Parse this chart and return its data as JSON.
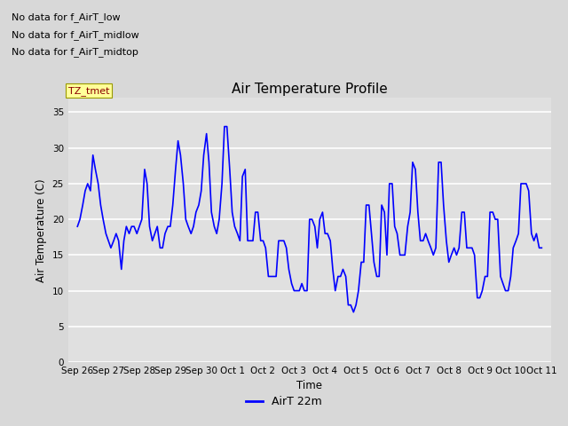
{
  "title": "Air Temperature Profile",
  "ylabel": "Air Temperature (C)",
  "xlabel": "Time",
  "legend_label": "AirT 22m",
  "ylim": [
    0,
    37
  ],
  "yticks": [
    0,
    5,
    10,
    15,
    20,
    25,
    30,
    35
  ],
  "figure_bg_color": "#d8d8d8",
  "plot_bg_color": "#e0e0e0",
  "line_color": "blue",
  "annotations": [
    "No data for f_AirT_low",
    "No data for f_AirT_midlow",
    "No data for f_AirT_midtop"
  ],
  "tz_label": "TZ_tmet",
  "x_tick_labels": [
    "Sep 26",
    "Sep 27",
    "Sep 28",
    "Sep 29",
    "Sep 30",
    "Oct 1",
    "Oct 2",
    "Oct 3",
    "Oct 4",
    "Oct 5",
    "Oct 6",
    "Oct 7",
    "Oct 8",
    "Oct 9",
    "Oct 10",
    "Oct 11"
  ],
  "data_x": [
    0,
    0.08,
    0.17,
    0.25,
    0.33,
    0.42,
    0.5,
    0.58,
    0.67,
    0.75,
    0.83,
    0.92,
    1.0,
    1.08,
    1.17,
    1.25,
    1.33,
    1.42,
    1.5,
    1.58,
    1.67,
    1.75,
    1.83,
    1.92,
    2.0,
    2.08,
    2.17,
    2.25,
    2.33,
    2.42,
    2.5,
    2.58,
    2.67,
    2.75,
    2.83,
    2.92,
    3.0,
    3.08,
    3.17,
    3.25,
    3.33,
    3.42,
    3.5,
    3.58,
    3.67,
    3.75,
    3.83,
    3.92,
    4.0,
    4.08,
    4.17,
    4.25,
    4.33,
    4.42,
    4.5,
    4.58,
    4.67,
    4.75,
    4.83,
    4.92,
    5.0,
    5.08,
    5.17,
    5.25,
    5.33,
    5.42,
    5.5,
    5.58,
    5.67,
    5.75,
    5.83,
    5.92,
    6.0,
    6.08,
    6.17,
    6.25,
    6.33,
    6.42,
    6.5,
    6.58,
    6.67,
    6.75,
    6.83,
    6.92,
    7.0,
    7.08,
    7.17,
    7.25,
    7.33,
    7.42,
    7.5,
    7.58,
    7.67,
    7.75,
    7.83,
    7.92,
    8.0,
    8.08,
    8.17,
    8.25,
    8.33,
    8.42,
    8.5,
    8.58,
    8.67,
    8.75,
    8.83,
    8.92,
    9.0,
    9.08,
    9.17,
    9.25,
    9.33,
    9.42,
    9.5,
    9.58,
    9.67,
    9.75,
    9.83,
    9.92,
    10.0,
    10.08,
    10.17,
    10.25,
    10.33,
    10.42,
    10.5,
    10.58,
    10.67,
    10.75,
    10.83,
    10.92,
    11.0,
    11.08,
    11.17,
    11.25,
    11.33,
    11.42,
    11.5,
    11.58,
    11.67,
    11.75,
    11.83,
    11.92,
    12.0,
    12.08,
    12.17,
    12.25,
    12.33,
    12.42,
    12.5,
    12.58,
    12.67,
    12.75,
    12.83,
    12.92,
    13.0,
    13.08,
    13.17,
    13.25,
    13.33,
    13.42,
    13.5,
    13.58,
    13.67,
    13.75,
    13.83,
    13.92,
    14.0,
    14.08,
    14.17,
    14.25,
    14.33,
    14.42,
    14.5,
    14.58,
    14.67,
    14.75,
    14.83,
    14.92,
    15.0
  ],
  "data_y": [
    19,
    20,
    22,
    24,
    25,
    24,
    29,
    27,
    25,
    22,
    20,
    18,
    17,
    16,
    17,
    18,
    17,
    13,
    17,
    19,
    18,
    19,
    19,
    18,
    19,
    20,
    27,
    25,
    19,
    17,
    18,
    19,
    16,
    16,
    18,
    19,
    19,
    22,
    27,
    31,
    29,
    25,
    20,
    19,
    18,
    19,
    21,
    22,
    24,
    29,
    32,
    28,
    21,
    19,
    18,
    20,
    25,
    33,
    33,
    27,
    21,
    19,
    18,
    17,
    26,
    27,
    17,
    17,
    17,
    21,
    21,
    17,
    17,
    16,
    12,
    12,
    12,
    12,
    17,
    17,
    17,
    16,
    13,
    11,
    10,
    10,
    10,
    11,
    10,
    10,
    20,
    20,
    19,
    16,
    20,
    21,
    18,
    18,
    17,
    13,
    10,
    12,
    12,
    13,
    12,
    8,
    8,
    7,
    8,
    10,
    14,
    14,
    22,
    22,
    18,
    14,
    12,
    12,
    22,
    21,
    15,
    25,
    25,
    19,
    18,
    15,
    15,
    15,
    19,
    21,
    28,
    27,
    21,
    17,
    17,
    18,
    17,
    16,
    15,
    16,
    28,
    28,
    22,
    17,
    14,
    15,
    16,
    15,
    16,
    21,
    21,
    16,
    16,
    16,
    15,
    9,
    9,
    10,
    12,
    12,
    21,
    21,
    20,
    20,
    12,
    11,
    10,
    10,
    12,
    16,
    17,
    18,
    25,
    25,
    25,
    24,
    18,
    17,
    18,
    16,
    16
  ]
}
